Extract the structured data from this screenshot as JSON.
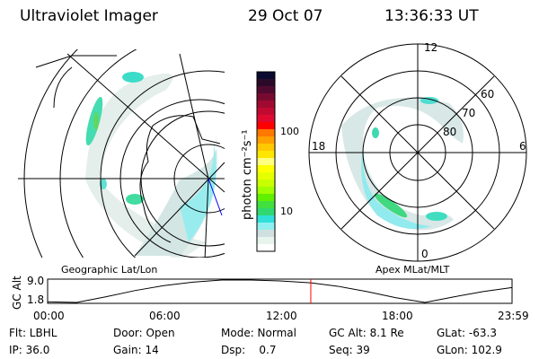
{
  "header": {
    "instrument": "Ultraviolet Imager",
    "date": "29 Oct 07",
    "time": "13:36:33 UT"
  },
  "colorbar": {
    "unit_label": "photon cm⁻²s⁻¹",
    "ticks": [
      "100",
      "10"
    ],
    "scale": "log",
    "colors": [
      "#0a0a30",
      "#2a0a28",
      "#500a30",
      "#780a30",
      "#a00a30",
      "#c00a30",
      "#e00a30",
      "#ff0000",
      "#ff7800",
      "#ffa000",
      "#ffc800",
      "#ffe600",
      "#ffff80",
      "#ffff00",
      "#e6ff00",
      "#c8ff00",
      "#a0ff00",
      "#60f000",
      "#40e040",
      "#30d870",
      "#30e0d8",
      "#90f0f0",
      "#d0e0e0",
      "#e8f4ee",
      "#ffffff"
    ]
  },
  "left_panel": {
    "label": "Geographic Lat/Lon"
  },
  "right_panel": {
    "label": "Apex MLat/MLT",
    "mlt_labels": [
      "12",
      "6",
      "0",
      "18"
    ],
    "mlat_labels": [
      "60",
      "70",
      "80"
    ]
  },
  "altitude_plot": {
    "ylabel": "GC Alt",
    "yticks": [
      "9.0",
      "1.8"
    ],
    "xticks": [
      "00:00",
      "06:00",
      "12:00",
      "18:00",
      "23:59"
    ],
    "current_time_hours": 13.6,
    "marker_color": "#ff0000"
  },
  "chart_data": {
    "type": "line",
    "xlabel": "",
    "ylabel": "GC Alt",
    "x": [
      0,
      1.5,
      3,
      4.5,
      6,
      7.5,
      9,
      10.5,
      12,
      13.6,
      15,
      16.5,
      18,
      19.5,
      21,
      22.5,
      24
    ],
    "values": [
      2.0,
      1.8,
      3.6,
      5.6,
      7.2,
      8.3,
      9.0,
      9.0,
      8.7,
      8.1,
      7.0,
      5.3,
      3.3,
      1.8,
      3.6,
      5.3,
      6.6
    ],
    "ylim": [
      1.8,
      9.0
    ],
    "xlim": [
      0,
      24
    ]
  },
  "status": {
    "row1": [
      "Flt: LBHL",
      "Door: Open",
      "Mode: Normal",
      "GC Alt: 8.1 Re",
      "GLat: -63.3"
    ],
    "row2": [
      "IP: 36.0",
      "Gain: 14",
      "Dsp:    0.7",
      "Seq: 39",
      "GLon: 102.9"
    ]
  }
}
